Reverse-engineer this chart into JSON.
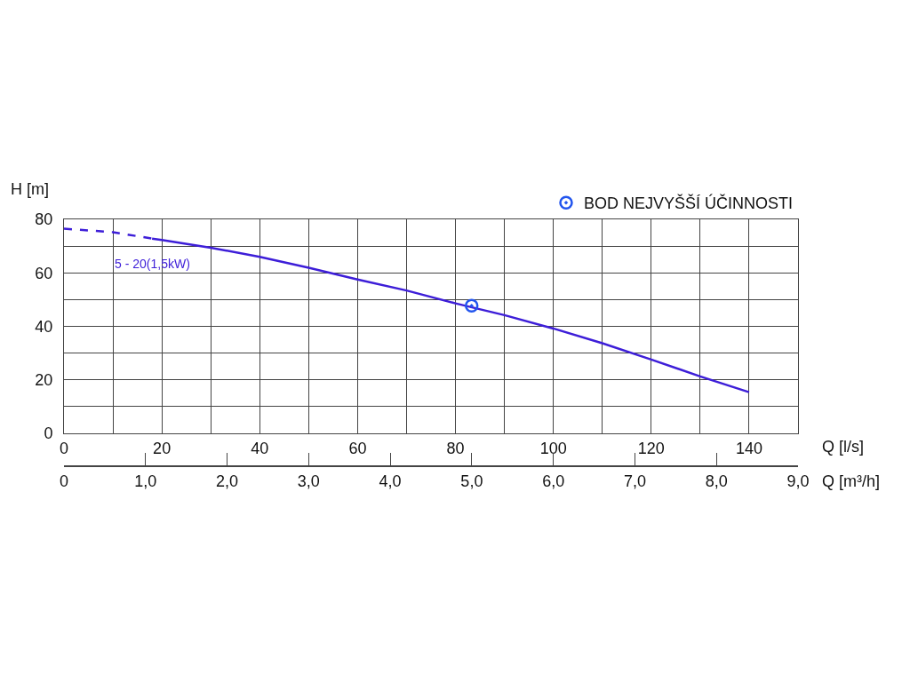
{
  "chart_data": {
    "type": "line",
    "xlabel": "Q [l/s]",
    "x2label": "Q [m³/h]",
    "ylabel": "H [m]",
    "xlim": [
      0,
      150
    ],
    "xticks": [
      0,
      {
        "value": 10,
        "label": null
      },
      20,
      {
        "value": 30,
        "label": null
      },
      40,
      {
        "value": 50,
        "label": null
      },
      60,
      {
        "value": 70,
        "label": null
      },
      80,
      {
        "value": 90,
        "label": null
      },
      100,
      {
        "value": 110,
        "label": null
      },
      120,
      {
        "value": 130,
        "label": null
      },
      140,
      {
        "value": 150,
        "label": null
      }
    ],
    "x2lim": [
      0,
      9
    ],
    "x2ticks": [
      0,
      {
        "value": 1,
        "label": "1,0"
      },
      {
        "value": 2,
        "label": "2,0"
      },
      {
        "value": 3,
        "label": "3,0"
      },
      {
        "value": 4,
        "label": "4,0"
      },
      {
        "value": 5,
        "label": "5,0"
      },
      {
        "value": 6,
        "label": "6,0"
      },
      {
        "value": 7,
        "label": "7,0"
      },
      {
        "value": 8,
        "label": "8,0"
      },
      {
        "value": 9,
        "label": "9,0"
      }
    ],
    "ylim": [
      0,
      80
    ],
    "yticks": [
      0,
      {
        "value": 10,
        "label": null
      },
      20,
      {
        "value": 30,
        "label": null
      },
      40,
      {
        "value": 50,
        "label": null
      },
      60,
      {
        "value": 70,
        "label": null
      },
      80
    ],
    "grid": true,
    "legend": "top right",
    "series": [
      {
        "color": "#3d1ed8",
        "line_style": "dashed",
        "marker": "none",
        "x": [
          0,
          10,
          18
        ],
        "values": [
          76.5,
          75.2,
          72.8
        ]
      },
      {
        "name": "5 - 20(1,5kW)",
        "color": "#3d1ed8",
        "line_style": "solid",
        "marker": "none",
        "x": [
          18,
          20,
          30,
          40,
          50,
          60,
          70,
          80,
          90,
          100,
          110,
          120,
          130,
          140
        ],
        "values": [
          72.8,
          72.3,
          69.4,
          66,
          61.9,
          57.5,
          53.4,
          48.6,
          44.2,
          39.2,
          33.7,
          27.6,
          21.3,
          15.4
        ]
      },
      {
        "type": "scatter",
        "name": "BOD NEJVYŠŠÍ ÚČINNOSTI",
        "color": "#2255ee",
        "marker": "circle",
        "x": [
          83.3
        ],
        "values": [
          47.7
        ]
      }
    ]
  }
}
